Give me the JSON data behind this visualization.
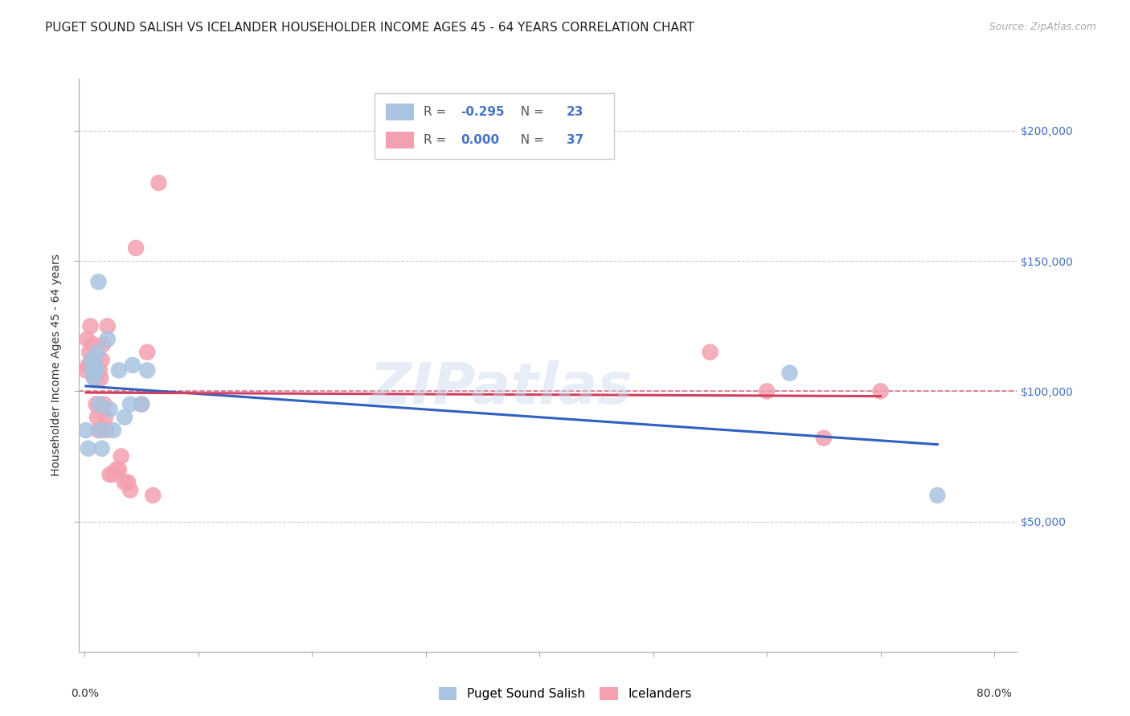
{
  "title": "PUGET SOUND SALISH VS ICELANDER HOUSEHOLDER INCOME AGES 45 - 64 YEARS CORRELATION CHART",
  "source": "Source: ZipAtlas.com",
  "ylabel": "Householder Income Ages 45 - 64 years",
  "ytick_labels": [
    "$50,000",
    "$100,000",
    "$150,000",
    "$200,000"
  ],
  "ytick_values": [
    50000,
    100000,
    150000,
    200000
  ],
  "ylim": [
    0,
    220000
  ],
  "xlim": [
    -0.005,
    0.82
  ],
  "watermark": "ZIPatlas",
  "legend_blue_r": "-0.295",
  "legend_blue_n": "23",
  "legend_pink_r": "0.000",
  "legend_pink_n": "37",
  "blue_color": "#a8c4e0",
  "pink_color": "#f4a0b0",
  "line_blue": "#3060c0",
  "line_pink": "#d04060",
  "dashed_line_y": 100000,
  "blue_scatter_x": [
    0.001,
    0.003,
    0.006,
    0.007,
    0.008,
    0.009,
    0.01,
    0.011,
    0.012,
    0.013,
    0.014,
    0.015,
    0.02,
    0.022,
    0.025,
    0.03,
    0.035,
    0.04,
    0.042,
    0.05,
    0.055,
    0.62,
    0.75
  ],
  "blue_scatter_y": [
    85000,
    78000,
    112000,
    108000,
    105000,
    110000,
    108000,
    115000,
    142000,
    95000,
    85000,
    78000,
    120000,
    93000,
    85000,
    108000,
    90000,
    95000,
    110000,
    95000,
    108000,
    107000,
    60000
  ],
  "pink_scatter_x": [
    0.001,
    0.002,
    0.003,
    0.004,
    0.005,
    0.006,
    0.007,
    0.008,
    0.009,
    0.01,
    0.011,
    0.012,
    0.013,
    0.014,
    0.015,
    0.016,
    0.017,
    0.018,
    0.019,
    0.02,
    0.022,
    0.025,
    0.028,
    0.03,
    0.032,
    0.035,
    0.038,
    0.04,
    0.045,
    0.05,
    0.055,
    0.06,
    0.065,
    0.55,
    0.6,
    0.65,
    0.7
  ],
  "pink_scatter_y": [
    108000,
    120000,
    110000,
    115000,
    125000,
    112000,
    118000,
    108000,
    105000,
    95000,
    90000,
    85000,
    108000,
    105000,
    112000,
    118000,
    95000,
    90000,
    85000,
    125000,
    68000,
    68000,
    70000,
    70000,
    75000,
    65000,
    65000,
    62000,
    155000,
    95000,
    115000,
    60000,
    180000,
    115000,
    100000,
    82000,
    100000
  ],
  "legend_label_blue": "Puget Sound Salish",
  "legend_label_pink": "Icelanders",
  "title_fontsize": 11,
  "axis_label_fontsize": 10,
  "tick_fontsize": 10,
  "accent_color": "#4472c4"
}
